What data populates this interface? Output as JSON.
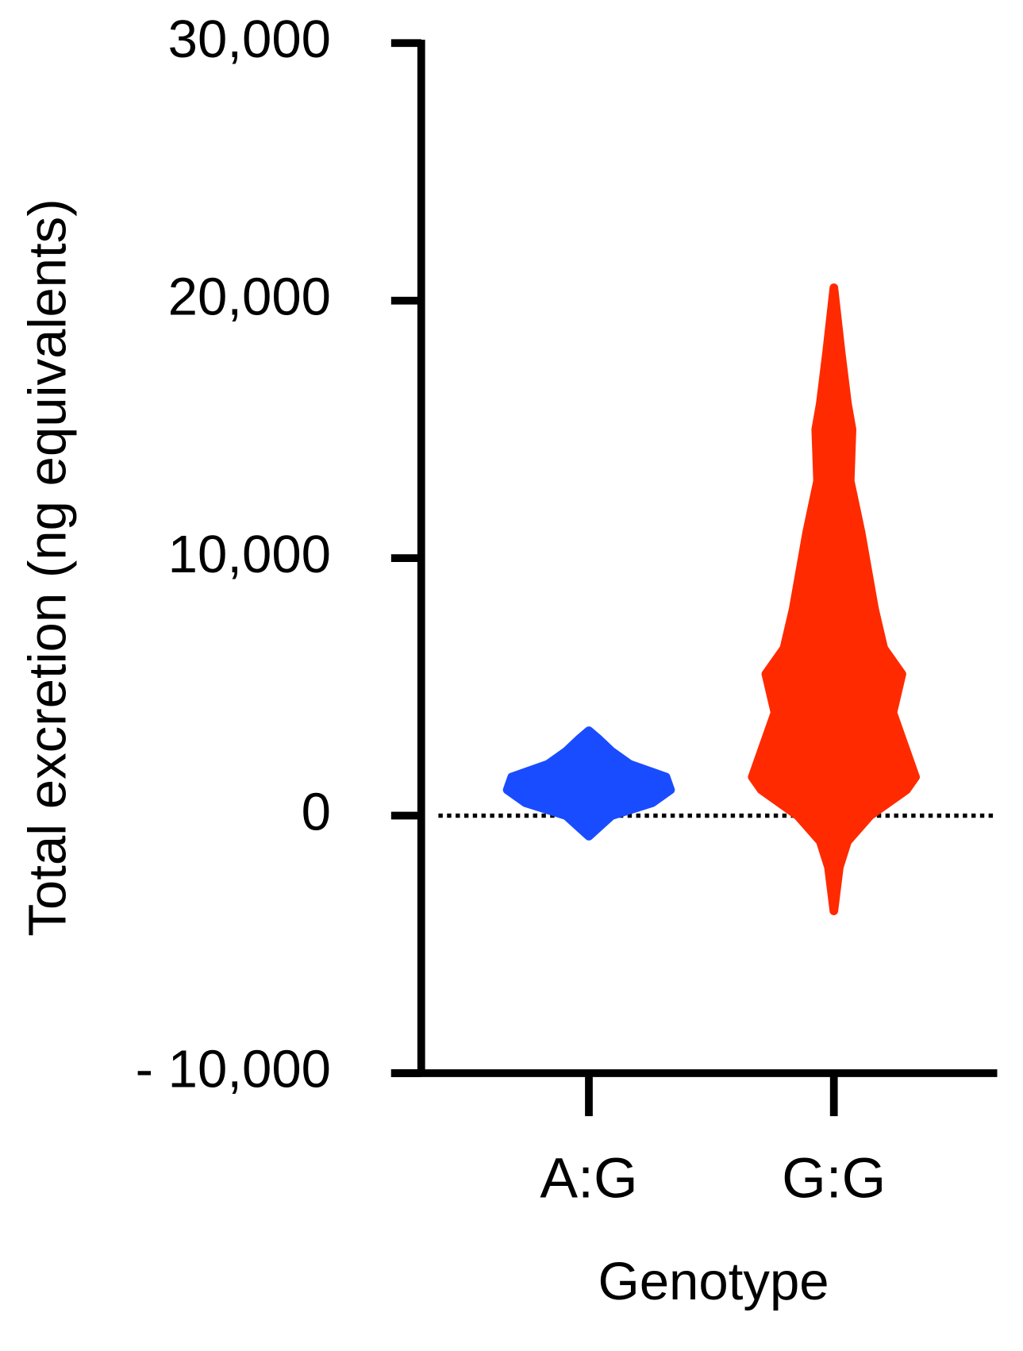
{
  "chart_data": {
    "type": "violin",
    "xlabel": "Genotype",
    "ylabel": "Total excretion (ng equivalents)",
    "categories": [
      "A:G",
      "G:G"
    ],
    "ylim": [
      -10000,
      30000
    ],
    "yticks": [
      {
        "value": -10000,
        "label": "- 10,000"
      },
      0,
      {
        "value": 10000,
        "label": "10,000"
      },
      {
        "value": 20000,
        "label": "20,000"
      },
      {
        "value": 30000,
        "label": "30,000"
      }
    ],
    "reference_line": 0,
    "series": [
      {
        "name": "A:G",
        "color": "#1a4cff",
        "profile_y": [
          -800,
          0,
          500,
          1000,
          1500,
          2000,
          2500,
          3000,
          3300
        ],
        "profile_width": [
          0,
          25,
          70,
          90,
          85,
          45,
          25,
          10,
          0
        ]
      },
      {
        "name": "G:G",
        "color": "#ff2a00",
        "profile_y": [
          -3700,
          -2000,
          -1000,
          0,
          1000,
          1500,
          2500,
          4000,
          5500,
          6500,
          8000,
          10000,
          11000,
          13000,
          15000,
          16000,
          18000,
          20500
        ],
        "profile_width": [
          0,
          6,
          15,
          40,
          80,
          90,
          80,
          65,
          75,
          55,
          45,
          35,
          30,
          18,
          20,
          15,
          8,
          0
        ]
      }
    ]
  }
}
